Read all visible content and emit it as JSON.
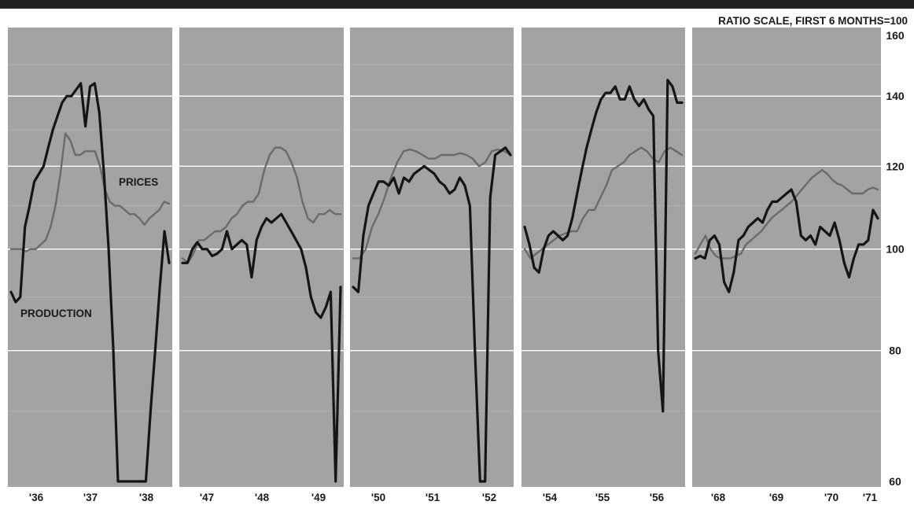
{
  "chart_data": {
    "type": "line",
    "title": "RATIO SCALE, FIRST 6 MONTHS=100",
    "y_scale": "log",
    "ylim": [
      60,
      160
    ],
    "yticks": [
      60,
      80,
      100,
      120,
      140,
      160
    ],
    "grid": true,
    "colors": {
      "panel": "#a3a3a3",
      "gap": "#ffffff",
      "gridline": "#ffffff",
      "top_bar": "#222222",
      "production": "#151515",
      "prices": "#6b6b6b"
    },
    "series_labels": {
      "prices": "PRICES",
      "production": "PRODUCTION"
    },
    "panels": [
      {
        "ticks": [
          "'36",
          "'37",
          "'38"
        ],
        "production": [
          91,
          89,
          90,
          105,
          110,
          116,
          118,
          120,
          125,
          130,
          134,
          138,
          140,
          140,
          142,
          144,
          131,
          143,
          144,
          135,
          118,
          100,
          80,
          60,
          60,
          60,
          60,
          60,
          60,
          60,
          70,
          80,
          92,
          104,
          97
        ],
        "prices": [
          100,
          100,
          100,
          99.5,
          100,
          100,
          101,
          102,
          105,
          110,
          118,
          129,
          127,
          123,
          123,
          124,
          124,
          124,
          120,
          114,
          111,
          110,
          110,
          109,
          108,
          108,
          107,
          105.5,
          107,
          108,
          109,
          111,
          110.5
        ]
      },
      {
        "ticks": [
          "'47",
          "'48",
          "'49"
        ],
        "production": [
          97,
          97,
          100,
          101.5,
          100,
          100,
          98.5,
          99,
          100,
          104,
          100,
          101,
          102,
          101,
          94,
          102,
          105,
          107,
          106,
          107,
          108,
          106,
          104,
          102,
          100,
          96,
          90,
          87,
          86,
          88,
          91,
          60,
          92
        ],
        "prices": [
          98,
          97,
          99,
          102,
          102,
          103,
          104,
          104,
          105,
          107,
          108,
          110,
          111,
          111,
          113,
          119,
          123,
          125,
          125,
          124,
          121,
          117,
          111,
          107,
          106,
          108,
          108,
          109,
          108,
          108
        ]
      },
      {
        "ticks": [
          "'50",
          "'51",
          "'52"
        ],
        "production": [
          92,
          91,
          103,
          110,
          113,
          116,
          116,
          115,
          117,
          113,
          117,
          116,
          118,
          119,
          120,
          119,
          118,
          116,
          115,
          113,
          114,
          117,
          115,
          110,
          80,
          60,
          60,
          112,
          123,
          124,
          125,
          123
        ],
        "prices": [
          98,
          98,
          100,
          105,
          108,
          112,
          117,
          121,
          124,
          124.5,
          124,
          123,
          122,
          122,
          123,
          123,
          123,
          123.5,
          123,
          122,
          120,
          121,
          124,
          124.5,
          124,
          123
        ]
      },
      {
        "ticks": [
          "'54",
          "'55",
          "'56"
        ],
        "production": [
          105,
          101,
          96,
          95,
          100,
          103,
          104,
          103,
          102,
          103,
          107,
          113,
          119,
          125,
          130,
          135,
          139,
          141,
          141,
          143,
          139,
          139,
          143,
          139,
          137,
          139,
          136,
          134,
          80,
          70,
          145,
          143,
          138,
          138
        ],
        "prices": [
          100,
          98,
          99,
          100,
          101,
          102,
          103,
          103.5,
          104,
          104,
          107,
          109,
          109,
          112,
          115,
          119,
          120,
          121,
          123,
          124,
          125,
          124,
          122,
          121,
          124,
          125,
          124,
          123
        ]
      },
      {
        "ticks": [
          "'68",
          "'69",
          "'70",
          "'71"
        ],
        "production": [
          98,
          98.5,
          98,
          102,
          103,
          101,
          93,
          91,
          95,
          102,
          103,
          105,
          106,
          107,
          106,
          109,
          111,
          111,
          112,
          113,
          114,
          111,
          103,
          102,
          103,
          101,
          105,
          104,
          103,
          106,
          102,
          97,
          94,
          98,
          101,
          101,
          102,
          109,
          107
        ],
        "prices": [
          99,
          101,
          103,
          100,
          98.5,
          98,
          98,
          98,
          98.5,
          99,
          101,
          102,
          103,
          104,
          105.5,
          107,
          108,
          109,
          110,
          111,
          112.5,
          114,
          115.5,
          117,
          118,
          119,
          118,
          116.5,
          115.5,
          115,
          114,
          113,
          113,
          113,
          114,
          114.5,
          114
        ]
      }
    ]
  }
}
